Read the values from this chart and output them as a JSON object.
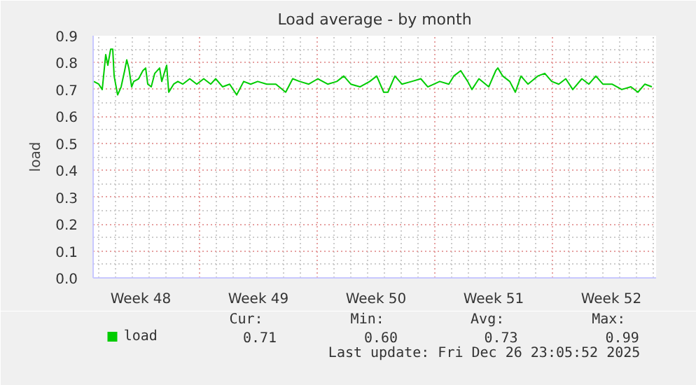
{
  "chart_data": {
    "type": "line",
    "title": "Load average - by month",
    "ylabel": "load",
    "x": [
      "2025-11-24T17:00",
      "2025-11-25T00:00",
      "2025-11-25T05:00",
      "2025-11-25T10:00",
      "2025-11-25T13:00",
      "2025-11-25T17:00",
      "2025-11-25T20:00",
      "2025-11-25T22:00",
      "2025-11-26T03:00",
      "2025-11-26T08:00",
      "2025-11-26T13:00",
      "2025-11-26T16:00",
      "2025-11-26T19:00",
      "2025-11-26T23:00",
      "2025-11-27T02:00",
      "2025-11-27T09:00",
      "2025-11-27T15:00",
      "2025-11-27T19:00",
      "2025-11-27T22:00",
      "2025-11-28T03:00",
      "2025-11-28T08:00",
      "2025-11-28T15:00",
      "2025-11-28T18:00",
      "2025-11-29T01:00",
      "2025-11-29T04:00",
      "2025-11-29T11:00",
      "2025-11-29T17:00",
      "2025-11-30T00:00",
      "2025-11-30T10:00",
      "2025-11-30T20:00",
      "2025-12-01T06:00",
      "2025-12-01T16:00",
      "2025-12-01T23:00",
      "2025-12-02T09:00",
      "2025-12-02T19:00",
      "2025-12-03T05:00",
      "2025-12-03T15:00",
      "2025-12-04T01:00",
      "2025-12-04T11:00",
      "2025-12-05T00:00",
      "2025-12-05T13:00",
      "2025-12-06T03:00",
      "2025-12-06T13:00",
      "2025-12-06T23:00",
      "2025-12-07T12:00",
      "2025-12-08T01:00",
      "2025-12-08T15:00",
      "2025-12-09T04:00",
      "2025-12-09T14:00",
      "2025-12-10T00:00",
      "2025-12-10T13:00",
      "2025-12-11T03:00",
      "2025-12-11T13:00",
      "2025-12-11T23:00",
      "2025-12-12T05:00",
      "2025-12-12T15:00",
      "2025-12-13T01:00",
      "2025-12-13T15:00",
      "2025-12-14T04:00",
      "2025-12-14T14:00",
      "2025-12-15T07:00",
      "2025-12-15T20:00",
      "2025-12-16T03:00",
      "2025-12-16T13:00",
      "2025-12-16T23:00",
      "2025-12-17T05:00",
      "2025-12-17T15:00",
      "2025-12-18T05:00",
      "2025-12-18T15:00",
      "2025-12-18T18:00",
      "2025-12-19T01:00",
      "2025-12-19T11:00",
      "2025-12-19T19:00",
      "2025-12-20T03:00",
      "2025-12-20T13:00",
      "2025-12-21T03:00",
      "2025-12-21T13:00",
      "2025-12-21T23:00",
      "2025-12-22T09:00",
      "2025-12-22T19:00",
      "2025-12-23T05:00",
      "2025-12-23T18:00",
      "2025-12-24T04:00",
      "2025-12-24T14:00",
      "2025-12-25T00:00",
      "2025-12-25T13:00",
      "2025-12-26T03:00",
      "2025-12-26T16:00",
      "2025-12-27T02:00",
      "2025-12-27T12:00",
      "2025-12-27T22:00"
    ],
    "series": [
      {
        "name": "load",
        "color": "#00cc00",
        "values": [
          0.73,
          0.72,
          0.7,
          0.83,
          0.79,
          0.85,
          0.85,
          0.75,
          0.68,
          0.71,
          0.77,
          0.81,
          0.78,
          0.71,
          0.73,
          0.74,
          0.77,
          0.78,
          0.72,
          0.71,
          0.76,
          0.78,
          0.73,
          0.79,
          0.69,
          0.72,
          0.73,
          0.72,
          0.74,
          0.72,
          0.74,
          0.72,
          0.74,
          0.71,
          0.72,
          0.68,
          0.73,
          0.72,
          0.73,
          0.72,
          0.72,
          0.69,
          0.74,
          0.73,
          0.72,
          0.74,
          0.72,
          0.73,
          0.75,
          0.72,
          0.71,
          0.73,
          0.75,
          0.69,
          0.69,
          0.75,
          0.72,
          0.73,
          0.74,
          0.71,
          0.73,
          0.72,
          0.75,
          0.77,
          0.73,
          0.7,
          0.74,
          0.71,
          0.77,
          0.78,
          0.75,
          0.73,
          0.69,
          0.75,
          0.72,
          0.75,
          0.76,
          0.73,
          0.72,
          0.74,
          0.7,
          0.74,
          0.72,
          0.75,
          0.72,
          0.72,
          0.7,
          0.71,
          0.69,
          0.72,
          0.71
        ]
      }
    ],
    "xlim": [
      "2025-11-24T16:00",
      "2025-12-28T04:00"
    ],
    "xticks": [
      {
        "value": "2025-11-27T12:00",
        "label": "Week 48"
      },
      {
        "value": "2025-12-01",
        "label": null
      },
      {
        "value": "2025-12-04T12:00",
        "label": "Week 49"
      },
      {
        "value": "2025-12-08",
        "label": null
      },
      {
        "value": "2025-12-11T12:00",
        "label": "Week 50"
      },
      {
        "value": "2025-12-15",
        "label": null
      },
      {
        "value": "2025-12-18T12:00",
        "label": "Week 51"
      },
      {
        "value": "2025-12-22",
        "label": null
      },
      {
        "value": "2025-12-25T12:00",
        "label": "Week 52"
      }
    ],
    "ylim": [
      0,
      0.9
    ],
    "yticks": [
      {
        "value": 0,
        "label": "0.0"
      },
      0.1,
      0.2,
      0.3,
      0.4,
      0.5,
      0.6,
      0.7,
      0.8,
      0.9
    ],
    "grid": true,
    "legend": "bottom",
    "annotations": [
      "Cur:",
      "0.71",
      "Min:",
      "0.60",
      "Avg:",
      "0.73",
      "Max:",
      "0.99",
      "Last update: Fri Dec 26 23:05:52 2025"
    ]
  }
}
